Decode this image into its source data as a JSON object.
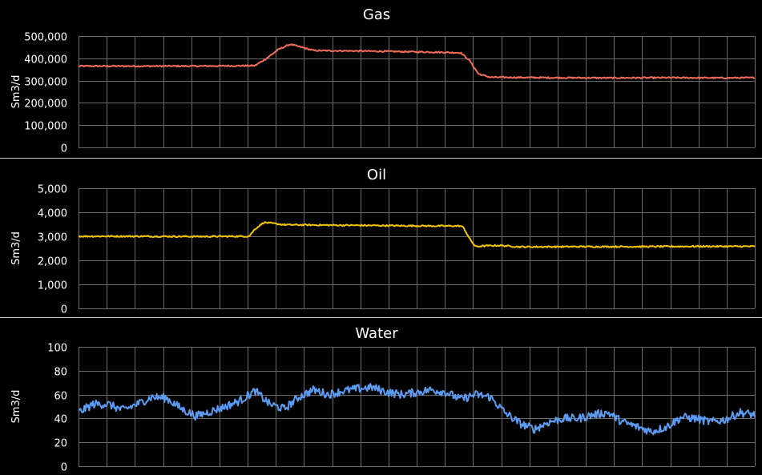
{
  "chart_data": [
    {
      "type": "line",
      "title": "Gas",
      "xlabel": "",
      "ylabel": "Sm3/d",
      "ylim": [
        0,
        500000
      ],
      "yticks": [
        "0",
        "100,000",
        "200,000",
        "300,000",
        "400,000",
        "500,000"
      ],
      "grid": true,
      "series": [
        {
          "color": "#f26d5b",
          "x": [
            0,
            2,
            4,
            6,
            6.4,
            6.8,
            7.2,
            8,
            10,
            12,
            13,
            13.3,
            13.6,
            14,
            16,
            18,
            20,
            22,
            23
          ],
          "values": [
            365000,
            365000,
            365000,
            367000,
            400000,
            440000,
            463000,
            435000,
            432000,
            428000,
            425000,
            390000,
            330000,
            315000,
            313000,
            312000,
            313000,
            312000,
            313000
          ]
        }
      ]
    },
    {
      "type": "line",
      "title": "Oil",
      "xlabel": "",
      "ylabel": "Sm3/d",
      "ylim": [
        0,
        5000
      ],
      "yticks": [
        "0",
        "1,000",
        "2,000",
        "3,000",
        "4,000",
        "5,000"
      ],
      "grid": true,
      "series": [
        {
          "color": "#f5c400",
          "x": [
            0,
            2,
            4,
            5.6,
            5.8,
            6,
            6.3,
            7,
            9,
            11,
            12,
            13,
            13.1,
            13.3,
            13.5,
            13.8,
            14.3,
            15,
            17,
            19,
            21,
            23
          ],
          "values": [
            3000,
            3000,
            2990,
            3000,
            3000,
            3300,
            3580,
            3480,
            3460,
            3440,
            3430,
            3430,
            3350,
            2900,
            2570,
            2600,
            2620,
            2560,
            2570,
            2570,
            2580,
            2580
          ]
        }
      ]
    },
    {
      "type": "line",
      "title": "Water",
      "xlabel": "",
      "ylabel": "Sm3/d",
      "ylim": [
        0,
        100
      ],
      "yticks": [
        "0",
        "20",
        "40",
        "60",
        "80",
        "100"
      ],
      "grid": true,
      "series": [
        {
          "color": "#5b9cf2",
          "x": [
            0,
            0.5,
            1,
            1.5,
            2,
            2.5,
            3,
            3.5,
            4,
            4.5,
            5,
            5.5,
            6,
            6.5,
            7,
            7.5,
            8,
            8.5,
            9,
            9.5,
            10,
            10.5,
            11,
            11.5,
            12,
            12.5,
            13,
            13.5,
            14,
            14.5,
            15,
            15.5,
            16,
            16.5,
            17,
            17.5,
            18,
            18.5,
            19,
            19.5,
            20,
            20.5,
            21,
            21.5,
            22,
            22.5,
            23
          ],
          "values": [
            45,
            52,
            52,
            47,
            52,
            58,
            57,
            48,
            42,
            46,
            50,
            55,
            63,
            52,
            48,
            58,
            64,
            60,
            63,
            65,
            66,
            62,
            60,
            62,
            64,
            62,
            56,
            60,
            58,
            45,
            36,
            31,
            37,
            40,
            40,
            43,
            45,
            37,
            33,
            29,
            33,
            41,
            40,
            37,
            39,
            45,
            43
          ]
        }
      ]
    }
  ]
}
